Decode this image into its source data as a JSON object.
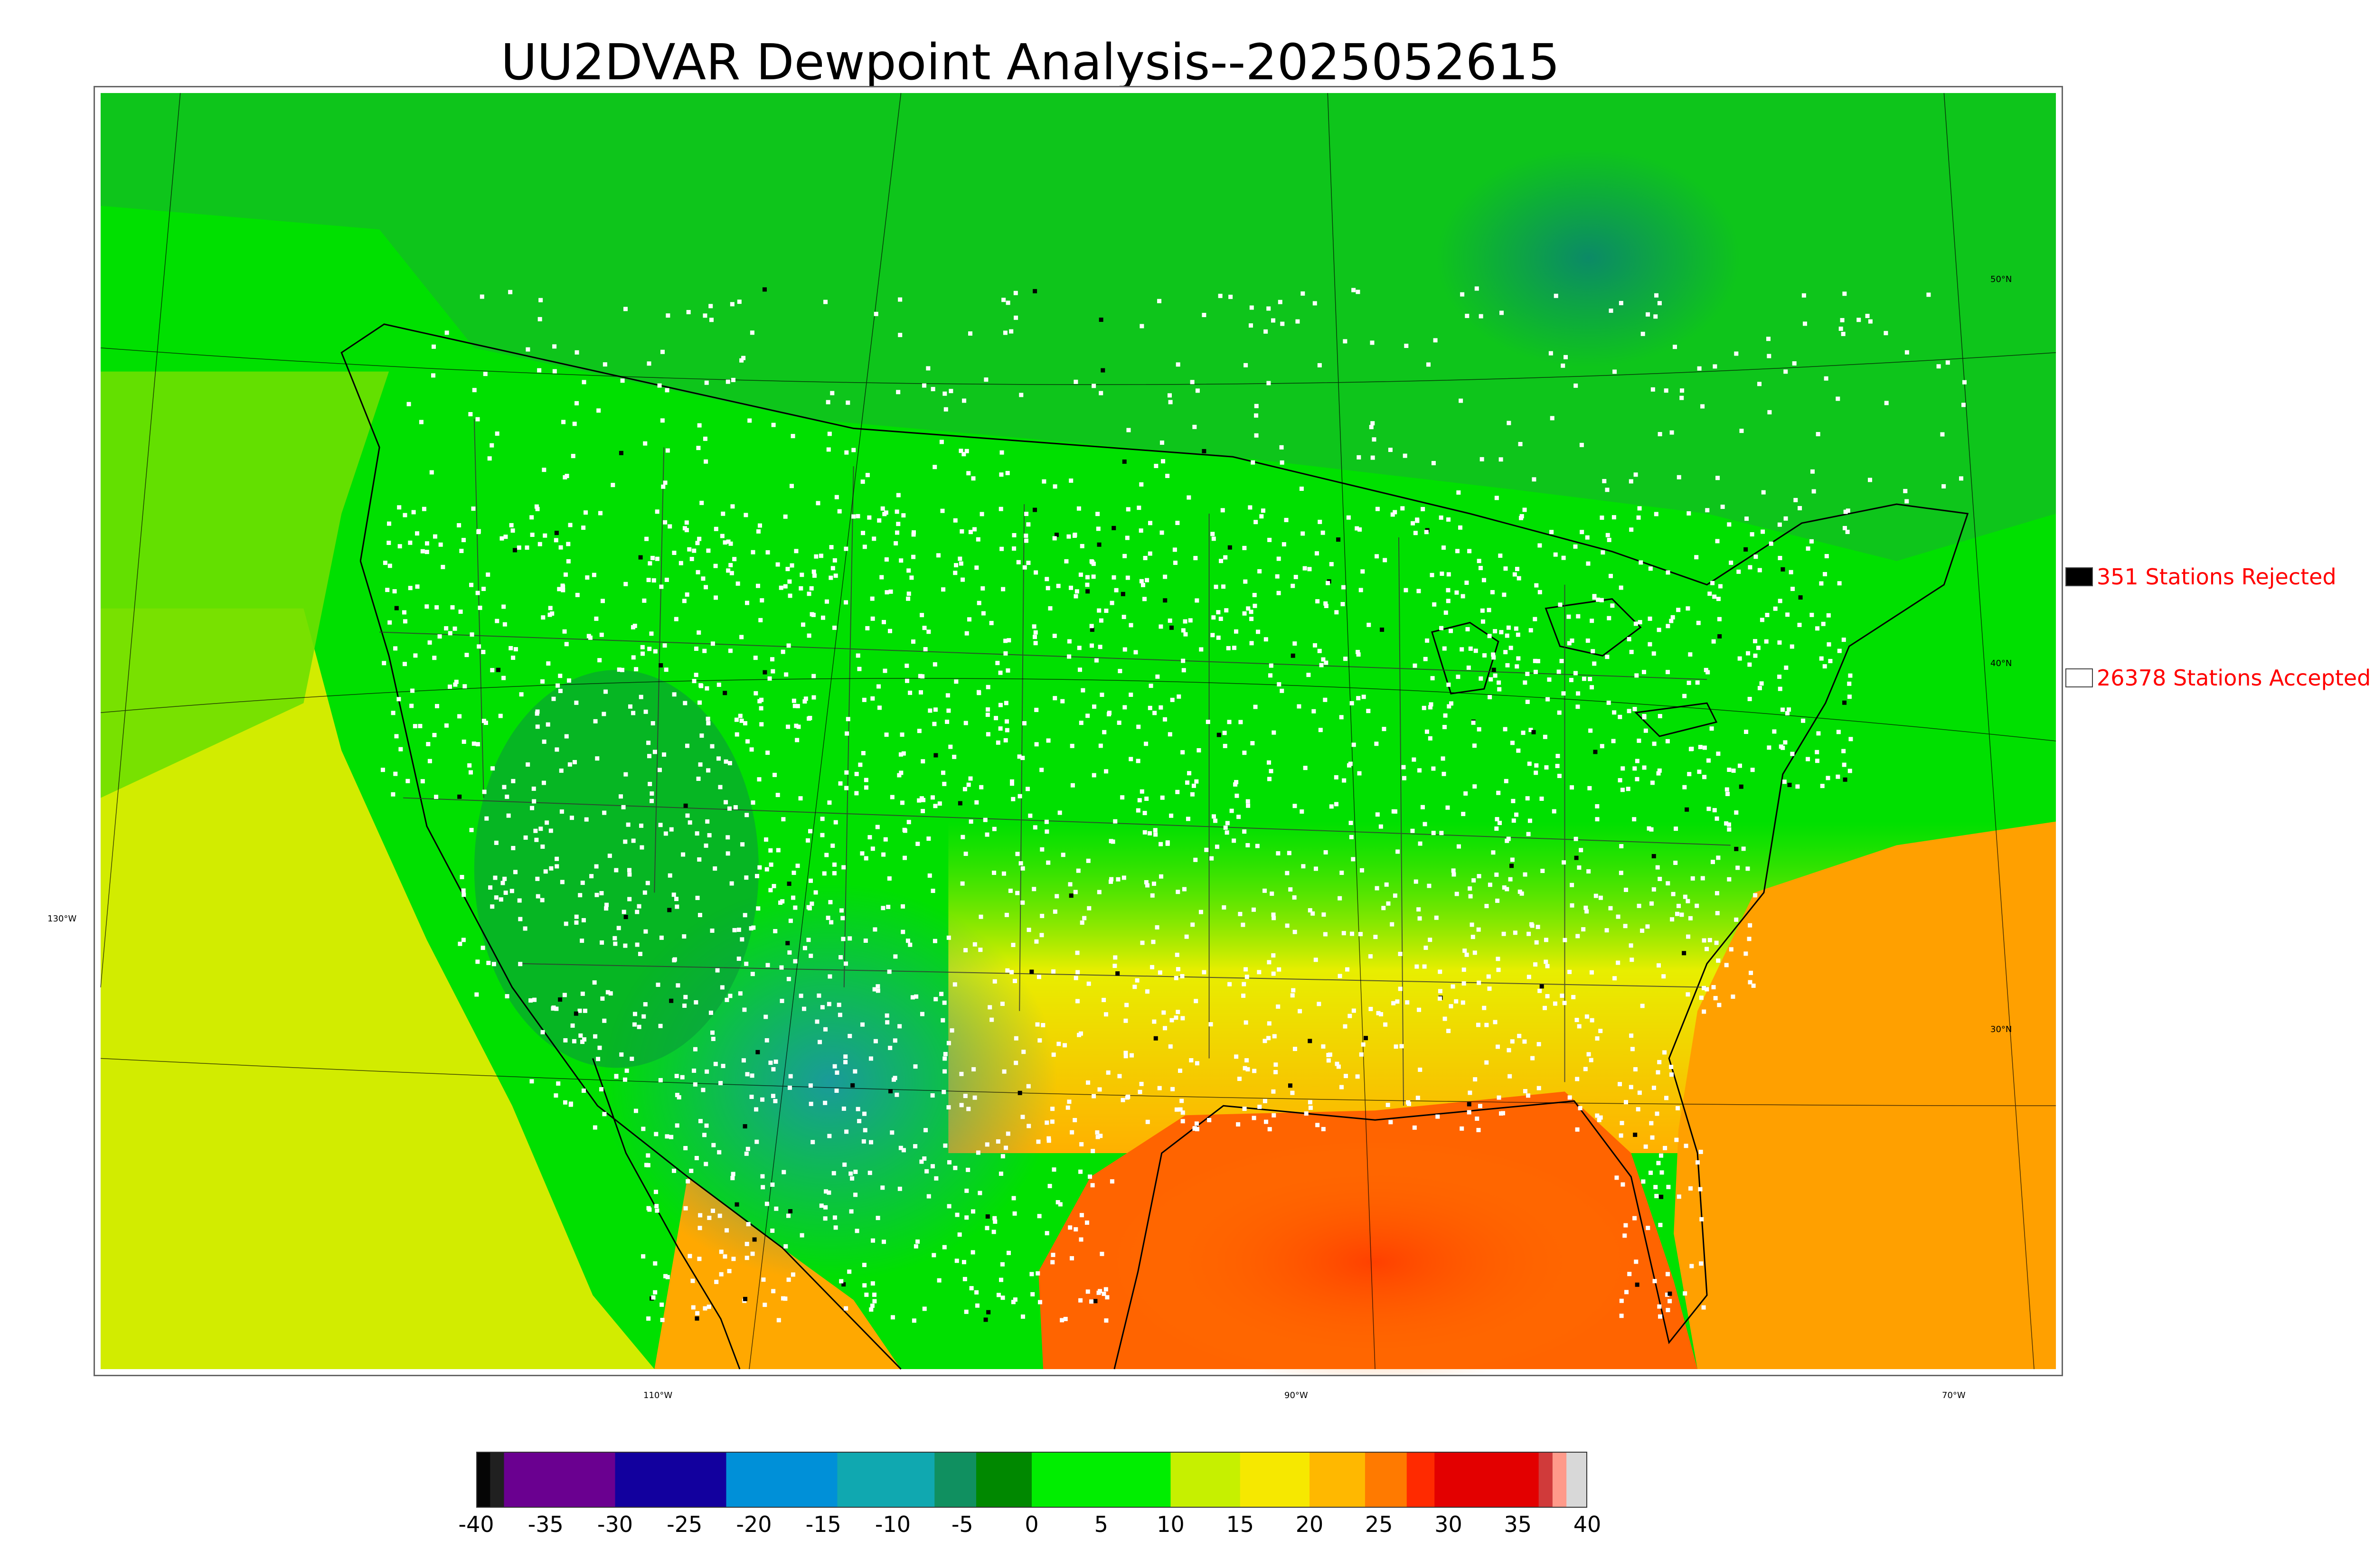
{
  "title": "UU2DVAR Dewpoint Analysis--2025052615",
  "legend": {
    "rejected": {
      "label": "351 Stations Rejected",
      "swatch_color": "#000000"
    },
    "accepted": {
      "label": "26378 Stations Accepted",
      "swatch_color": "#ffffff"
    }
  },
  "map": {
    "lon_labels": [
      "130°W",
      "110°W",
      "90°W",
      "70°W"
    ],
    "lat_labels": [
      "50°N",
      "40°N",
      "30°N"
    ],
    "field_colors": {
      "ocean_west": "#d7ee00",
      "ocean_gulf": "#ff5a00",
      "ocean_atlantic": "#ff9a00",
      "canada": "#00cc10",
      "dry_west": "#1aa8a0",
      "station_accepted": "#ffffff",
      "station_rejected": "#000000"
    }
  },
  "colorbar": {
    "ticks": [
      "-40",
      "-35",
      "-30",
      "-25",
      "-20",
      "-15",
      "-10",
      "-5",
      "0",
      "5",
      "10",
      "15",
      "20",
      "25",
      "30",
      "35",
      "40"
    ],
    "min": -40,
    "max": 40,
    "segments": [
      {
        "from": -40,
        "to": -39,
        "color": "#050505"
      },
      {
        "from": -39,
        "to": -38,
        "color": "#202020"
      },
      {
        "from": -38,
        "to": -30,
        "color": "#6a0090"
      },
      {
        "from": -30,
        "to": -22,
        "color": "#12009e"
      },
      {
        "from": -22,
        "to": -14,
        "color": "#0090d8"
      },
      {
        "from": -14,
        "to": -7,
        "color": "#10a8b0"
      },
      {
        "from": -7,
        "to": -4,
        "color": "#109060"
      },
      {
        "from": -4,
        "to": 0,
        "color": "#008800"
      },
      {
        "from": 0,
        "to": 10,
        "color": "#00ee00"
      },
      {
        "from": 10,
        "to": 15,
        "color": "#c6f000"
      },
      {
        "from": 15,
        "to": 20,
        "color": "#f6e800"
      },
      {
        "from": 20,
        "to": 24,
        "color": "#ffb800"
      },
      {
        "from": 24,
        "to": 27,
        "color": "#ff7a00"
      },
      {
        "from": 27,
        "to": 29,
        "color": "#ff2a00"
      },
      {
        "from": 29,
        "to": 36.5,
        "color": "#e30000"
      },
      {
        "from": 36.5,
        "to": 37.5,
        "color": "#d03a3a"
      },
      {
        "from": 37.5,
        "to": 38.5,
        "color": "#ff9a8a"
      },
      {
        "from": 38.5,
        "to": 40,
        "color": "#d8d8d8"
      }
    ]
  }
}
